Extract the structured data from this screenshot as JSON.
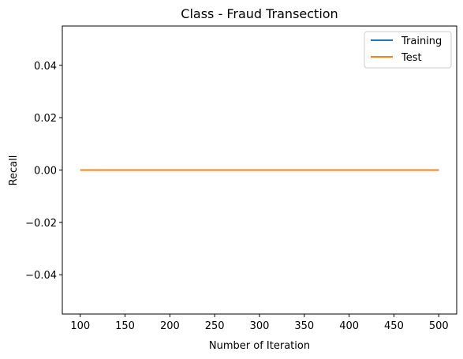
{
  "chart_data": {
    "type": "line",
    "title": "Class - Fraud Transection",
    "xlabel": "Number of Iteration",
    "ylabel": "Recall",
    "xlim": [
      80,
      520
    ],
    "ylim": [
      -0.055,
      0.055
    ],
    "xticks": [
      100,
      150,
      200,
      250,
      300,
      350,
      400,
      450,
      500
    ],
    "xtick_labels": [
      "100",
      "150",
      "200",
      "250",
      "300",
      "350",
      "400",
      "450",
      "500"
    ],
    "yticks": [
      -0.04,
      -0.02,
      0.0,
      0.02,
      0.04
    ],
    "ytick_labels": [
      "−0.04",
      "−0.02",
      "0.00",
      "0.02",
      "0.04"
    ],
    "grid": false,
    "legend_position": "upper right",
    "series": [
      {
        "name": "Training",
        "color": "#1f77b4",
        "x": [
          100,
          200,
          300,
          400,
          500
        ],
        "values": [
          0,
          0,
          0,
          0,
          0
        ]
      },
      {
        "name": "Test",
        "color": "#ff7f0e",
        "x": [
          100,
          200,
          300,
          400,
          500
        ],
        "values": [
          0,
          0,
          0,
          0,
          0
        ]
      }
    ]
  }
}
